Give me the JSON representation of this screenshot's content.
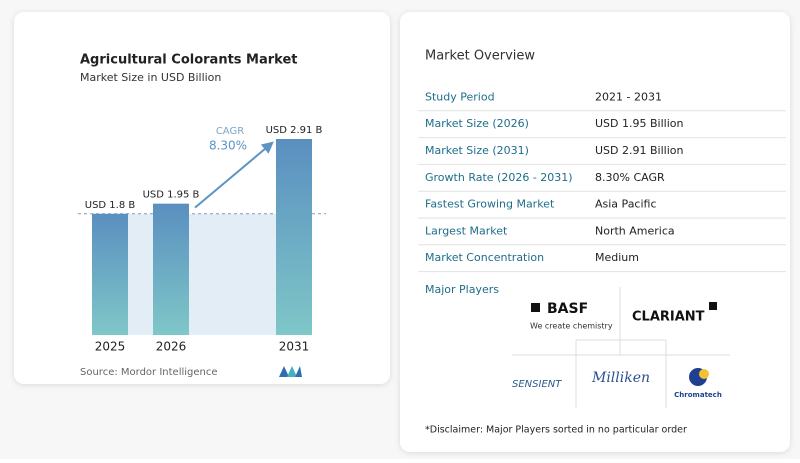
{
  "chart_data": {
    "type": "bar",
    "title": "Agricultural Colorants Market",
    "subtitle": "Market Size in USD Billion",
    "categories": [
      "2025",
      "2026",
      "2031"
    ],
    "values": [
      1.8,
      1.95,
      2.91
    ],
    "value_labels": [
      "USD 1.8 B",
      "USD 1.95 B",
      "USD 2.91 B"
    ],
    "annotation": {
      "label": "CAGR",
      "value": "8.30%"
    },
    "source": "Source: Mordor Intelligence"
  },
  "overview": {
    "title": "Market Overview",
    "rows": [
      [
        "Study Period",
        "2021 - 2031"
      ],
      [
        "Market Size (2026)",
        "USD 1.95 Billion"
      ],
      [
        "Market Size (2031)",
        "USD 2.91 Billion"
      ],
      [
        "Growth Rate (2026 - 2031)",
        "8.30% CAGR"
      ],
      [
        "Fastest Growing Market",
        "Asia Pacific"
      ],
      [
        "Largest Market",
        "North America"
      ],
      [
        "Market Concentration",
        "Medium"
      ]
    ],
    "players_label": "Major Players",
    "players": [
      "BASF",
      "We create chemistry",
      "CLARIANT",
      "SENSIENT",
      "Milliken",
      "Chromatech"
    ],
    "disclaimer": "*Disclaimer: Major Players sorted in no particular order"
  }
}
